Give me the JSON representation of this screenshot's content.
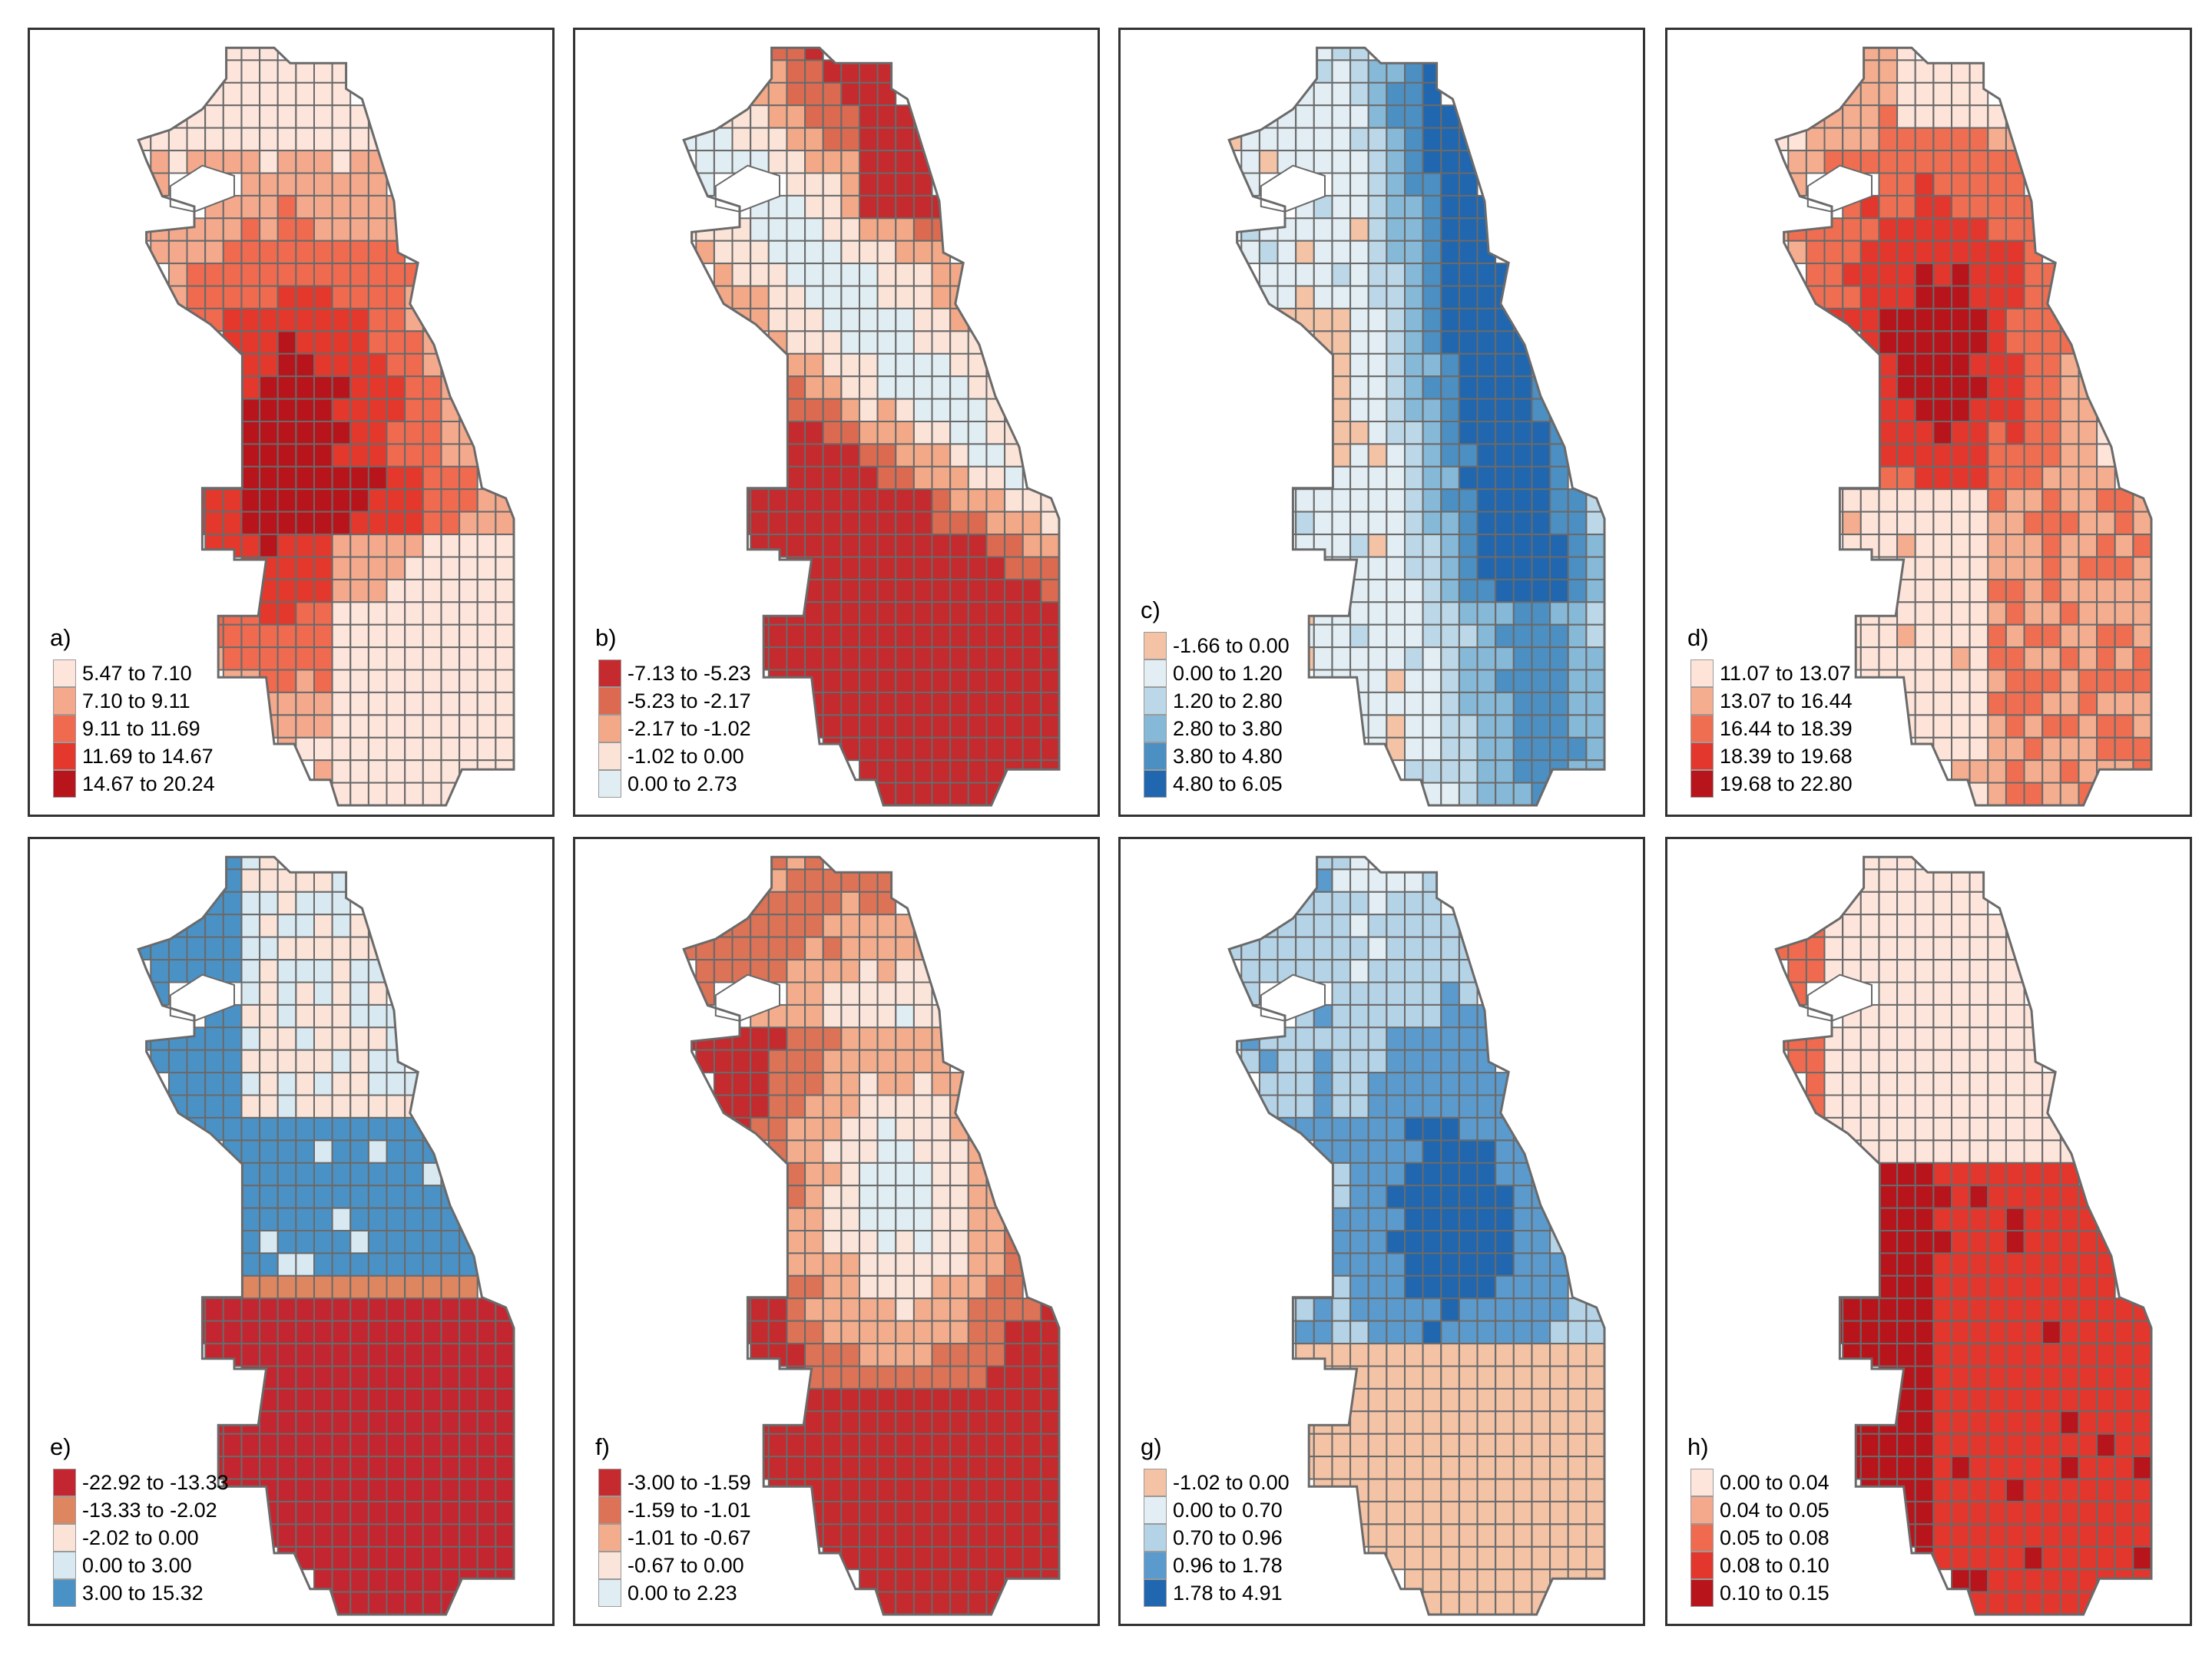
{
  "panels": [
    {
      "label": "a)",
      "palette": "reds-a",
      "legend": [
        {
          "text": "5.47 to 7.10",
          "color": "#fde5dc"
        },
        {
          "text": "7.10 to 9.11",
          "color": "#f4a98d"
        },
        {
          "text": "9.11 to 11.69",
          "color": "#f06a50"
        },
        {
          "text": "11.69 to 14.67",
          "color": "#e5382c"
        },
        {
          "text": "14.67 to 20.24",
          "color": "#b8141c"
        }
      ]
    },
    {
      "label": "b)",
      "palette": "rdbu-b",
      "legend": [
        {
          "text": "-7.13 to -5.23",
          "color": "#c42a2e"
        },
        {
          "text": "-5.23 to -2.17",
          "color": "#dc6a50"
        },
        {
          "text": "-2.17 to -1.02",
          "color": "#f3a987"
        },
        {
          "text": "-1.02 to 0.00",
          "color": "#fbe3d7"
        },
        {
          "text": "0.00 to 2.73",
          "color": "#e0edf3"
        }
      ]
    },
    {
      "label": "c)",
      "palette": "blues-c",
      "legend": [
        {
          "text": "-1.66 to 0.00",
          "color": "#f4c2a4"
        },
        {
          "text": "0.00 to 1.20",
          "color": "#e2eef4"
        },
        {
          "text": "1.20 to 2.80",
          "color": "#bcd8e8"
        },
        {
          "text": "2.80 to 3.80",
          "color": "#86b8d8"
        },
        {
          "text": "3.80 to 4.80",
          "color": "#4b8fc3"
        },
        {
          "text": "4.80 to 6.05",
          "color": "#2067b0"
        }
      ]
    },
    {
      "label": "d)",
      "palette": "reds-d",
      "legend": [
        {
          "text": "11.07 to 13.07",
          "color": "#fde3d8"
        },
        {
          "text": "13.07 to 16.44",
          "color": "#f5ad8f"
        },
        {
          "text": "16.44 to 18.39",
          "color": "#ef6e52"
        },
        {
          "text": "18.39 to 19.68",
          "color": "#e3372d"
        },
        {
          "text": "19.68 to 22.80",
          "color": "#b8141c"
        }
      ]
    },
    {
      "label": "e)",
      "palette": "rdbu-e",
      "legend": [
        {
          "text": "-22.92 to -13.33",
          "color": "#c32630"
        },
        {
          "text": "-13.33 to -2.02",
          "color": "#de8660"
        },
        {
          "text": "-2.02 to 0.00",
          "color": "#fbe3d7"
        },
        {
          "text": "0.00 to 3.00",
          "color": "#d8e9f2"
        },
        {
          "text": "3.00 to 15.32",
          "color": "#4a92c6"
        }
      ]
    },
    {
      "label": "f)",
      "palette": "rdbu-f",
      "legend": [
        {
          "text": "-3.00 to -1.59",
          "color": "#c42a2e"
        },
        {
          "text": "-1.59 to -1.01",
          "color": "#dc7256"
        },
        {
          "text": "-1.01 to -0.67",
          "color": "#f3ad8d"
        },
        {
          "text": "-0.67 to 0.00",
          "color": "#fbe4d9"
        },
        {
          "text": "0.00 to 2.23",
          "color": "#e0edf3"
        }
      ]
    },
    {
      "label": "g)",
      "palette": "blues-g",
      "legend": [
        {
          "text": "-1.02 to 0.00",
          "color": "#f4c2a4"
        },
        {
          "text": "0.00 to 0.70",
          "color": "#e2eef4"
        },
        {
          "text": "0.70 to 0.96",
          "color": "#b5d3e6"
        },
        {
          "text": "0.96 to 1.78",
          "color": "#5b9acc"
        },
        {
          "text": "1.78 to 4.91",
          "color": "#2067b0"
        }
      ]
    },
    {
      "label": "h)",
      "palette": "reds-h",
      "legend": [
        {
          "text": "0.00 to 0.04",
          "color": "#fde5dc"
        },
        {
          "text": "0.04 to 0.05",
          "color": "#f4a98d"
        },
        {
          "text": "0.05 to 0.08",
          "color": "#ef6a4e"
        },
        {
          "text": "0.08 to 0.10",
          "color": "#e3372d"
        },
        {
          "text": "0.10 to 0.15",
          "color": "#b8141c"
        }
      ]
    }
  ],
  "colors": {
    "grid": "#6a6a6a",
    "frame": "#333333",
    "text": "#000000"
  }
}
